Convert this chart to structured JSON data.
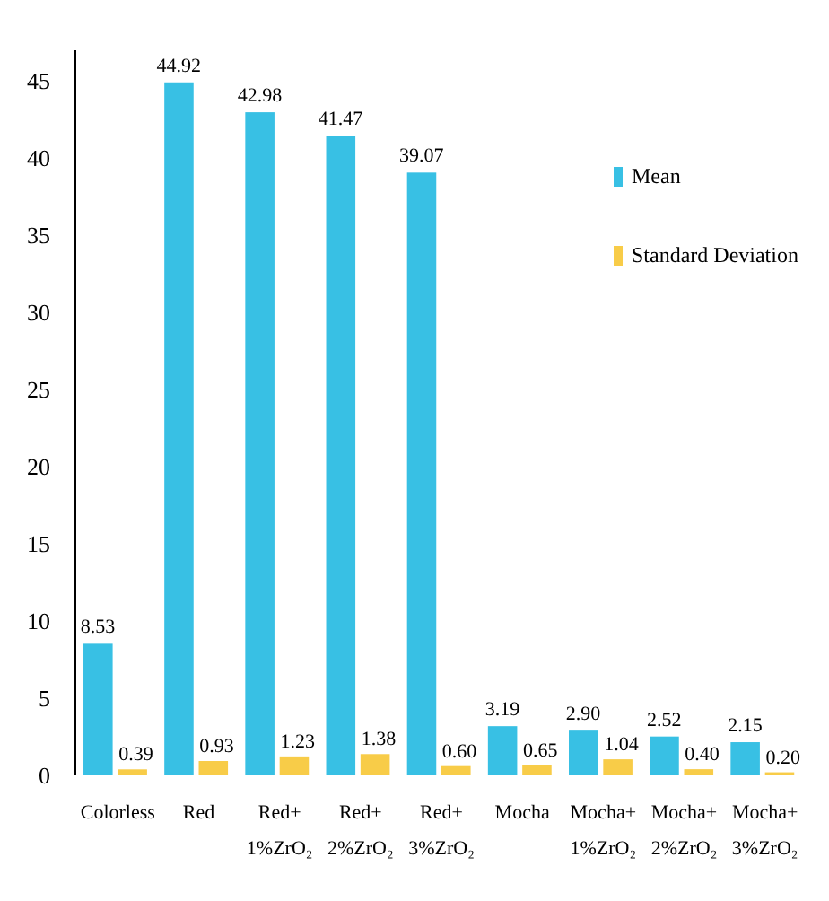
{
  "chart_data": {
    "type": "bar",
    "categories": [
      "Colorless",
      "Red",
      "Red+\n1%ZrO₂",
      "Red+\n2%ZrO₂",
      "Red+\n3%ZrO₂",
      "Mocha",
      "Mocha+\n1%ZrO₂",
      "Mocha+\n2%ZrO₂",
      "Mocha+\n3%ZrO₂"
    ],
    "series": [
      {
        "name": "Mean",
        "color": "#38c0e4",
        "values": [
          8.53,
          44.92,
          42.98,
          41.47,
          39.07,
          3.19,
          2.9,
          2.52,
          2.15
        ]
      },
      {
        "name": "Standard Deviation",
        "color": "#f8cc48",
        "values": [
          0.39,
          0.93,
          1.23,
          1.38,
          0.6,
          0.65,
          1.04,
          0.4,
          0.2
        ]
      }
    ],
    "value_labels": [
      [
        "8.53",
        "44.92",
        "42.98",
        "41.47",
        "39.07",
        "3.19",
        "2.90",
        "2.52",
        "2.15"
      ],
      [
        "0.39",
        "0.93",
        "1.23",
        "1.38",
        "0.60",
        "0.65",
        "1.04",
        "0.40",
        "0.20"
      ]
    ],
    "ylim": [
      0,
      47
    ],
    "yticks": [
      0,
      5,
      10,
      15,
      20,
      25,
      30,
      35,
      40,
      45
    ],
    "grid": false,
    "legend": "right"
  }
}
